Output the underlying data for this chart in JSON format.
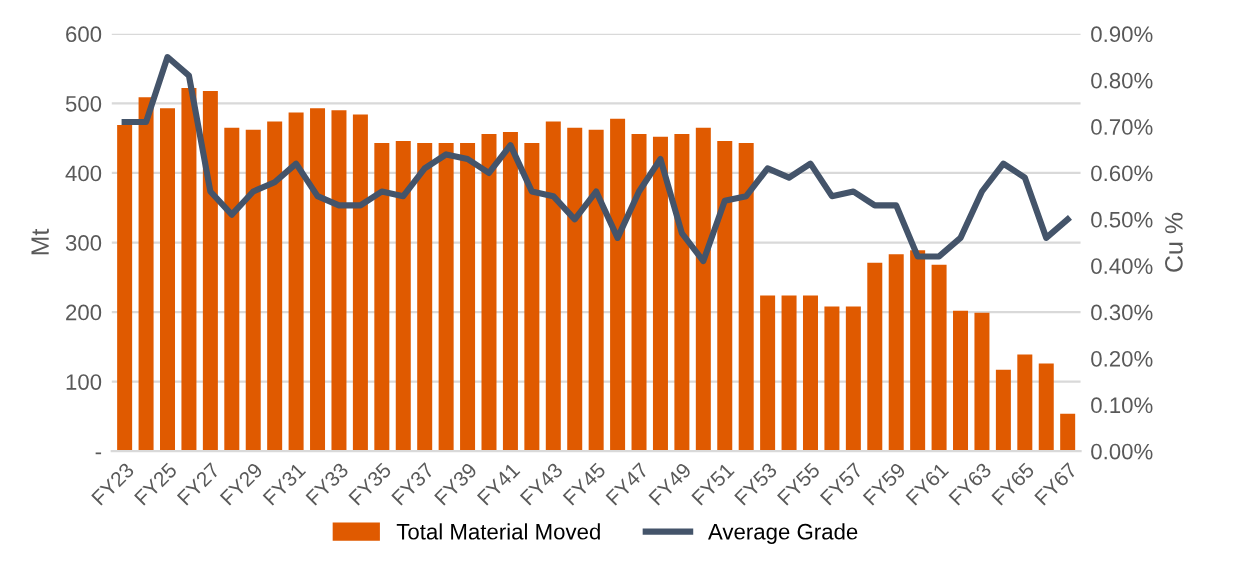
{
  "chart_data": {
    "type": "bar",
    "ylabel": "Mt",
    "y2label": "Cu %",
    "categories": [
      "FY23",
      null,
      "FY25",
      null,
      "FY27",
      null,
      "FY29",
      null,
      "FY31",
      null,
      "FY33",
      null,
      "FY35",
      null,
      "FY37",
      null,
      "FY39",
      null,
      "FY41",
      null,
      "FY43",
      null,
      "FY45",
      null,
      "FY47",
      null,
      "FY49",
      null,
      "FY51",
      null,
      "FY53",
      null,
      "FY55",
      null,
      "FY57",
      null,
      "FY59",
      null,
      "FY61",
      null,
      "FY63",
      null,
      "FY65",
      null,
      "FY67"
    ],
    "series": [
      {
        "name": "Total Material Moved",
        "color": "#e05a00",
        "values": [
          469,
          509,
          493,
          522,
          518,
          465,
          462,
          474,
          487,
          493,
          490,
          484,
          443,
          446,
          443,
          443,
          443,
          456,
          459,
          443,
          474,
          465,
          462,
          478,
          456,
          452,
          456,
          465,
          446,
          443,
          224,
          224,
          224,
          208,
          208,
          271,
          283,
          289,
          268,
          202,
          199,
          117,
          139,
          126,
          54
        ]
      },
      {
        "name": "Average Grade",
        "type": "line",
        "axis": "y2",
        "color": "#44546a",
        "values": [
          0.71,
          0.71,
          0.85,
          0.81,
          0.56,
          0.51,
          0.56,
          0.58,
          0.62,
          0.55,
          0.53,
          0.53,
          0.56,
          0.55,
          0.61,
          0.64,
          0.63,
          0.6,
          0.66,
          0.56,
          0.55,
          0.5,
          0.56,
          0.46,
          0.56,
          0.63,
          0.47,
          0.41,
          0.54,
          0.55,
          0.61,
          0.59,
          0.62,
          0.55,
          0.56,
          0.53,
          0.53,
          0.42,
          0.42,
          0.46,
          0.56,
          0.62,
          0.59,
          0.46,
          0.5
        ]
      }
    ],
    "ylim": [
      0,
      600
    ],
    "yticks": [
      {
        "value": 0,
        "label": "-"
      },
      100,
      200,
      300,
      400,
      500,
      600
    ],
    "y2lim": [
      0,
      0.9
    ],
    "y2ticks": [
      {
        "value": 0,
        "label": "0.00%"
      },
      {
        "value": 0.1,
        "label": "0.10%"
      },
      {
        "value": 0.2,
        "label": "0.20%"
      },
      {
        "value": 0.3,
        "label": "0.30%"
      },
      {
        "value": 0.4,
        "label": "0.40%"
      },
      {
        "value": 0.5,
        "label": "0.50%"
      },
      {
        "value": 0.6,
        "label": "0.60%"
      },
      {
        "value": 0.7,
        "label": "0.70%"
      },
      {
        "value": 0.8,
        "label": "0.80%"
      },
      {
        "value": 0.9,
        "label": "0.90%"
      }
    ],
    "grid": "y",
    "legend": "bottom",
    "marker": "none",
    "line_style": "solid"
  }
}
